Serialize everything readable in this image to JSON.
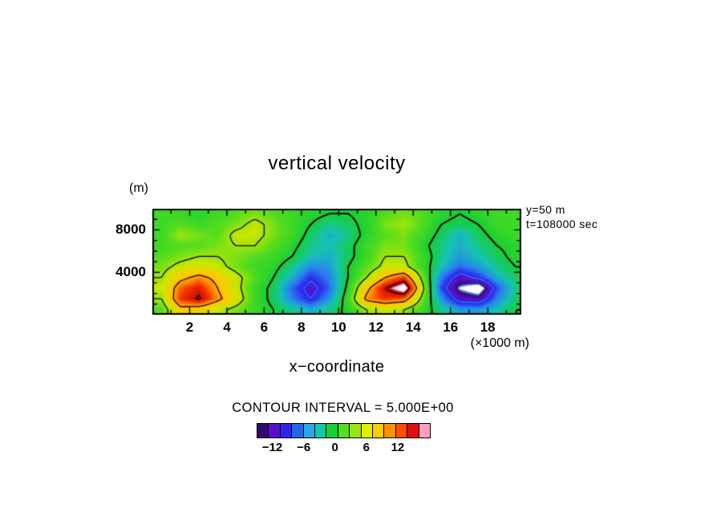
{
  "title": "vertical velocity",
  "axes": {
    "y_unit_label": "(m)",
    "x_unit_label": "(×1000 m)",
    "x_axis_label": "x−coordinate",
    "x_ticks": [
      2,
      4,
      6,
      8,
      10,
      12,
      14,
      16,
      18
    ],
    "x_minor_ticks": [
      1,
      3,
      5,
      7,
      9,
      11,
      13,
      15,
      17,
      19
    ],
    "y_ticks": [
      {
        "value": 8000,
        "label": "8000"
      },
      {
        "value": 4000,
        "label": "4000"
      }
    ],
    "y_minor_ticks": [
      1000,
      2000,
      3000,
      5000,
      6000,
      7000,
      9000
    ]
  },
  "annotations": {
    "line1": "y=50 m",
    "line2": "t=108000 sec"
  },
  "contour_note": "CONTOUR INTERVAL = 5.000E+00",
  "colorbar": {
    "min": -15,
    "max": 18,
    "ticks": [
      {
        "value": -12,
        "label": "−12"
      },
      {
        "value": -6,
        "label": "−6"
      },
      {
        "value": 0,
        "label": "0"
      },
      {
        "value": 6,
        "label": "6"
      },
      {
        "value": 12,
        "label": "12"
      }
    ],
    "colors": [
      "#30086e",
      "#5a10c8",
      "#3322ee",
      "#2266f0",
      "#28a8e8",
      "#11c8a8",
      "#16cf35",
      "#55dd22",
      "#99e510",
      "#e0ee00",
      "#ffcc00",
      "#ff9000",
      "#ff4d00",
      "#e01010",
      "#ff9fc0"
    ]
  },
  "chart_data": {
    "type": "heatmap",
    "title": "vertical velocity",
    "xlabel": "x−coordinate (×1000 m)",
    "ylabel": "(m)",
    "x_range": [
      0,
      19.8
    ],
    "y_range": [
      0,
      10000
    ],
    "contour_interval": 5,
    "contour_levels": [
      -15,
      -10,
      -5,
      0,
      5,
      10,
      15
    ],
    "contour_style": {
      "negative_color": "#00a8e8",
      "positive_color": "#000000",
      "zero_width": 2
    },
    "grid_x": [
      0.5,
      1.5,
      2.5,
      3.5,
      4.5,
      5.5,
      6.5,
      7.5,
      8.5,
      9.5,
      10.5,
      11.5,
      12.5,
      13.5,
      14.5,
      15.5,
      16.5,
      17.5,
      18.5,
      19.5
    ],
    "grid_y": [
      9500,
      8500,
      7500,
      6500,
      5500,
      4500,
      3500,
      2500,
      1500,
      500
    ],
    "values": [
      [
        2,
        2,
        1,
        2,
        3,
        4,
        3,
        2,
        1,
        0,
        0,
        1,
        3,
        4,
        3,
        1,
        0,
        1,
        2,
        2
      ],
      [
        2,
        3,
        2,
        3,
        4,
        6,
        4,
        2,
        0,
        -2,
        -1,
        1,
        4,
        5,
        3,
        0,
        -1,
        0,
        2,
        2
      ],
      [
        2,
        5,
        4,
        3,
        6,
        6,
        4,
        2,
        -1,
        -4,
        -2,
        1,
        3,
        4,
        2,
        -1,
        -4,
        -1,
        1,
        2
      ],
      [
        2,
        3,
        3,
        4,
        5,
        5,
        3,
        1,
        -2,
        -3,
        -1,
        2,
        4,
        4,
        1,
        -2,
        -4,
        -2,
        0,
        1
      ],
      [
        3,
        4,
        5,
        5,
        4,
        3,
        2,
        0,
        -3,
        -4,
        -1,
        2,
        5,
        5,
        2,
        -2,
        -5,
        -3,
        -1,
        1
      ],
      [
        4,
        6,
        7,
        6,
        4,
        2,
        1,
        -2,
        -6,
        -5,
        0,
        3,
        6,
        6,
        2,
        -3,
        -7,
        -5,
        -2,
        0
      ],
      [
        5,
        9,
        11,
        9,
        6,
        3,
        0,
        -4,
        -9,
        -6,
        0,
        5,
        10,
        13,
        4,
        -6,
        -12,
        -9,
        -4,
        -1
      ],
      [
        6,
        12,
        14,
        10,
        6,
        2,
        -1,
        -7,
        -12,
        -7,
        1,
        9,
        15,
        19,
        6,
        -8,
        -16,
        -19,
        -8,
        -2
      ],
      [
        5,
        13,
        15.5,
        11,
        7,
        2,
        -1,
        -6,
        -10,
        -5,
        2,
        11,
        13,
        12,
        4,
        -5,
        -12,
        -13,
        -6,
        -1
      ],
      [
        3,
        9,
        8,
        6,
        4,
        2,
        0,
        -2,
        -4,
        -2,
        1,
        5,
        6,
        5,
        2,
        -2,
        -5,
        -5,
        -3,
        0
      ]
    ],
    "colormap_stops": [
      [
        -16,
        "#ffffff"
      ],
      [
        -15,
        "#38077e"
      ],
      [
        -12,
        "#5a10c8"
      ],
      [
        -9,
        "#2c2cee"
      ],
      [
        -6,
        "#2a84ec"
      ],
      [
        -3,
        "#16c2b4"
      ],
      [
        0,
        "#16cf35"
      ],
      [
        3,
        "#52dc1e"
      ],
      [
        6,
        "#c8e800"
      ],
      [
        9,
        "#ffc800"
      ],
      [
        11,
        "#ff9000"
      ],
      [
        13,
        "#f53000"
      ],
      [
        15.8,
        "#b00000"
      ],
      [
        16.6,
        "#ff9fc0"
      ],
      [
        17.4,
        "#ffffff"
      ]
    ]
  }
}
